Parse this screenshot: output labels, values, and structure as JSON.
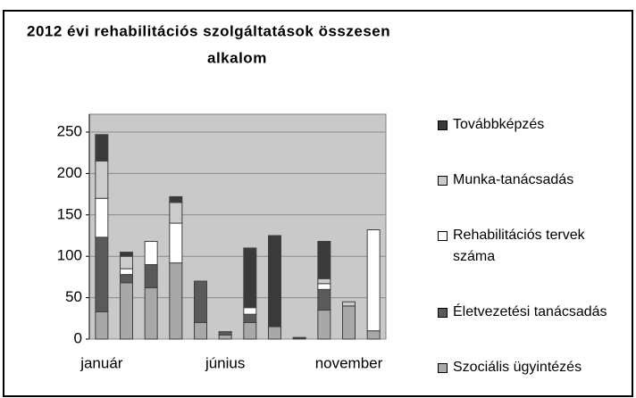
{
  "chart_data": {
    "type": "stacked_bar",
    "title": [
      "2012 évi rehabilitációs szolgáltatások összesen",
      "alkalom"
    ],
    "categories": [
      "január",
      null,
      null,
      null,
      null,
      "június",
      null,
      null,
      null,
      null,
      "november",
      null
    ],
    "series": [
      {
        "name": "Szociális ügyintézés",
        "color": "#a8a8a8",
        "values": [
          33,
          68,
          62,
          92,
          20,
          5,
          20,
          15,
          1,
          35,
          40,
          10
        ]
      },
      {
        "name": "Életvezetési tanácsadás",
        "color": "#5a5a5a",
        "values": [
          90,
          10,
          28,
          0,
          50,
          4,
          10,
          0,
          1,
          25,
          0,
          0
        ]
      },
      {
        "name": "Rehabilitációs tervek száma",
        "color": "#ffffff",
        "values": [
          47,
          7,
          28,
          48,
          0,
          0,
          8,
          0,
          0,
          7,
          0,
          122
        ]
      },
      {
        "name": "Munka-tanácsadás",
        "color": "#cccccc",
        "values": [
          45,
          15,
          0,
          25,
          0,
          0,
          0,
          0,
          0,
          6,
          5,
          0
        ]
      },
      {
        "name": "Továbbképzés",
        "color": "#3a3a3a",
        "values": [
          32,
          5,
          0,
          7,
          0,
          0,
          72,
          110,
          0,
          45,
          0,
          0
        ]
      }
    ],
    "ylim": [
      0,
      250
    ],
    "yticks": [
      0,
      50,
      100,
      150,
      200,
      250
    ],
    "grid": true
  }
}
